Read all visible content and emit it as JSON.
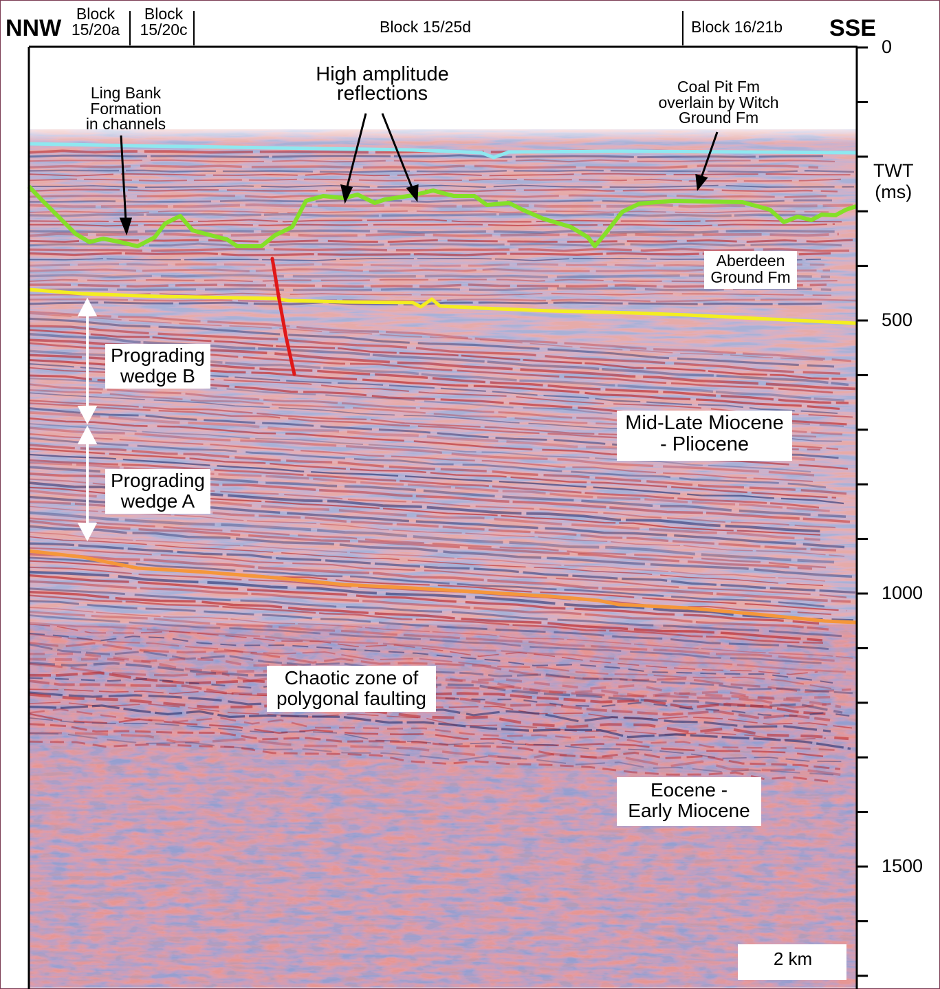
{
  "header": {
    "left_direction": "NNW",
    "right_direction": "SSE",
    "blocks": [
      {
        "line1": "Block",
        "line2": "15/20a"
      },
      {
        "line1": "Block",
        "line2": "15/20c"
      },
      {
        "line1": "Block 15/25d",
        "line2": ""
      },
      {
        "line1": "Block 16/21b",
        "line2": ""
      }
    ]
  },
  "axis": {
    "label_line1": "TWT",
    "label_line2": "(ms)",
    "ticks": [
      "0",
      "500",
      "1000",
      "1500"
    ],
    "range_ms": [
      0,
      1715
    ]
  },
  "annotations": {
    "ling_bank": [
      "Ling Bank",
      "Formation",
      "in channels"
    ],
    "high_amplitude": [
      "High amplitude",
      "reflections"
    ],
    "coal_pit": [
      "Coal Pit Fm",
      "overlain by Witch",
      "Ground Fm"
    ],
    "aberdeen": [
      "Aberdeen",
      "Ground Fm"
    ],
    "wedge_b": [
      "Prograding",
      "wedge B"
    ],
    "wedge_a": [
      "Prograding",
      "wedge A"
    ],
    "mid_late_miocene": [
      "Mid-Late Miocene",
      "- Pliocene"
    ],
    "chaotic_zone": [
      "Chaotic zone of",
      "polygonal faulting"
    ],
    "eocene": [
      "Eocene -",
      "Early Miocene"
    ]
  },
  "scale_bar": {
    "label": "2 km"
  },
  "colors": {
    "seabed_horizon": "#8ee8f0",
    "coal_pit_horizon": "#84e028",
    "aberdeen_base_horizon": "#f4ee20",
    "miocene_base_horizon": "#f5973a",
    "fault": "#e01818",
    "seismic_red": "#b8262a",
    "seismic_blue": "#26306e"
  }
}
